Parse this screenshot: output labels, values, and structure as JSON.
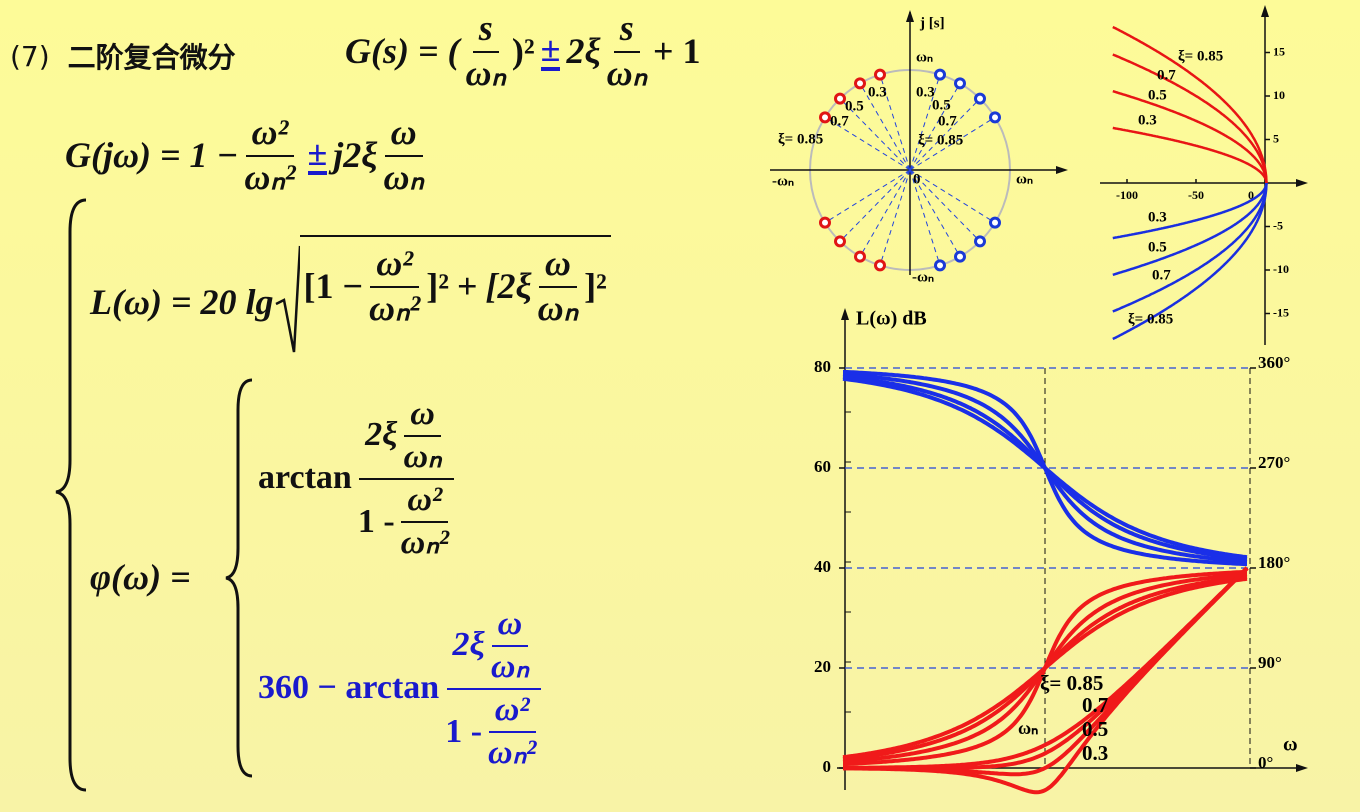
{
  "heading": {
    "number": "(7)",
    "title": "二阶复合微分"
  },
  "eq_Gs": {
    "lhs": "G(s) = (",
    "num1": "s",
    "den1": "ωₙ",
    "pow": ")²",
    "pm": "±",
    "coef": "2ξ",
    "num2": "s",
    "den2": "ωₙ",
    "tail": "+ 1"
  },
  "eq_Gjw": {
    "lhs": "G(jω) = 1 −",
    "num1": "ω²",
    "den1": "ωₙ²",
    "pm": "±",
    "coef": "j2ξ",
    "num2": "ω",
    "den2": "ωₙ"
  },
  "eq_L": {
    "lhs": "L(ω) = 20 lg",
    "open1": "[1 −",
    "num1": "ω²",
    "den1": "ωₙ²",
    "close1": "]²",
    "plus": "+",
    "open2": "[2ξ",
    "num2": "ω",
    "den2": "ωₙ",
    "close2": "]²"
  },
  "eq_phi": {
    "lhs": "φ(ω) =",
    "case1": {
      "func": "arctan",
      "coef": "2ξ",
      "num": "ω",
      "den": "ωₙ",
      "one": "1 -",
      "num2": "ω²",
      "den2": "ωₙ²"
    },
    "case2": {
      "func": "360 − arctan",
      "coef": "2ξ",
      "num": "ω",
      "den": "ωₙ",
      "one": "1 -",
      "num2": "ω²",
      "den2": "ωₙ²"
    }
  },
  "pole_plot": {
    "axis_label": "j [s]",
    "pos_imag": "ωₙ",
    "neg_imag": "-ωₙ",
    "pos_real": "ωₙ",
    "neg_real": "-ωₙ",
    "origin": "0",
    "left_labels": [
      "0.3",
      "0.5",
      "0.7",
      "ξ= 0.85"
    ],
    "right_labels": [
      "0.3",
      "0.5",
      "0.7",
      "ξ= 0.85"
    ]
  },
  "nyquist_plot": {
    "xticks": [
      "-100",
      "-50",
      "0"
    ],
    "yticks": [
      "15",
      "10",
      "5",
      "-5",
      "-10",
      "-15"
    ],
    "upper_labels": [
      "ξ= 0.85",
      "0.7",
      "0.5",
      "0.3"
    ],
    "lower_labels": [
      "0.3",
      "0.5",
      "0.7",
      "ξ= 0.85"
    ]
  },
  "bode_plot": {
    "y_label": "L(ω)  dB",
    "left_ticks": [
      "80",
      "60",
      "40",
      "20",
      "0"
    ],
    "right_ticks": [
      "360°",
      "270°",
      "180°",
      "90°",
      "0°"
    ],
    "x_label": "ω",
    "wn_label": "ωₙ",
    "curve_labels": [
      "ξ= 0.85",
      "0.7",
      "0.5",
      "0.3"
    ]
  }
}
